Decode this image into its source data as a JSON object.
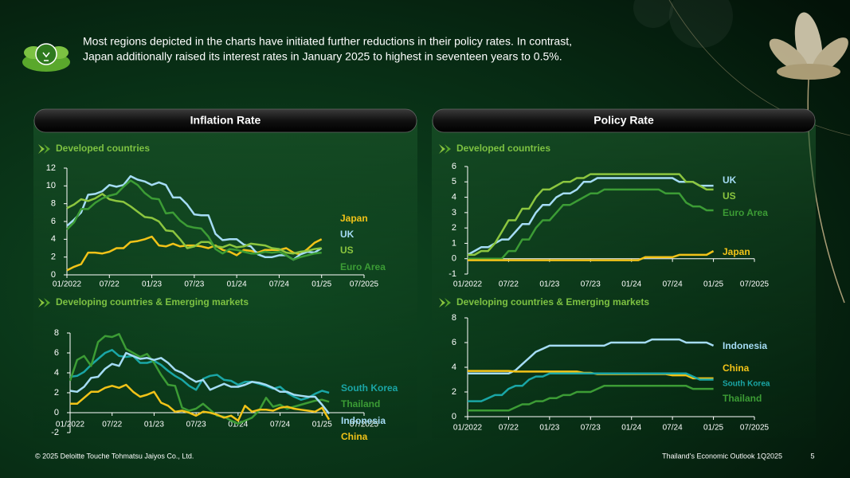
{
  "header": {
    "lines": [
      "Most regions depicted in the charts have initiated further reductions in their policy rates. In contrast,",
      "Japan additionally raised its interest rates in January 2025 to highest in seventeen years to 0.5%."
    ]
  },
  "panels": [
    {
      "title": "Inflation Rate"
    },
    {
      "title": "Policy Rate"
    }
  ],
  "footer": {
    "copyright": "© 2025 Deloitte Touche Tohmatsu Jaiyos Co., Ltd.",
    "report": "Thailand’s  Economic Outlook 1Q2025",
    "page": "5"
  },
  "chart_data": [
    {
      "type": "line",
      "title": "Developed countries",
      "categories": [
        "01/2022",
        null,
        null,
        null,
        null,
        null,
        "07/22",
        null,
        null,
        null,
        null,
        null,
        "01/23",
        null,
        null,
        null,
        null,
        null,
        "07/23",
        null,
        null,
        null,
        null,
        null,
        "01/24",
        null,
        null,
        null,
        null,
        null,
        "07/24",
        null,
        null,
        null,
        null,
        null,
        "01/25",
        null,
        null,
        null,
        null,
        null,
        "07/2025"
      ],
      "ylim": [
        0,
        12
      ],
      "yticks": [
        0,
        2,
        4,
        6,
        8,
        10,
        12
      ],
      "series": [
        {
          "name": "Japan",
          "color": "#f2c318",
          "values": [
            0.5,
            0.9,
            1.2,
            2.5,
            2.5,
            2.4,
            2.6,
            3.0,
            3.0,
            3.7,
            3.8,
            4.0,
            4.3,
            3.3,
            3.2,
            3.5,
            3.2,
            3.3,
            3.3,
            3.2,
            3.0,
            3.3,
            2.8,
            2.6,
            2.2,
            2.8,
            2.7,
            2.5,
            2.8,
            2.8,
            2.8,
            3.0,
            2.5,
            2.3,
            2.9,
            3.6,
            4.0,
            null,
            null,
            null,
            null,
            null,
            null
          ]
        },
        {
          "name": "UK",
          "color": "#a5dcf5",
          "values": [
            5.5,
            6.2,
            7.0,
            9.0,
            9.1,
            9.4,
            10.1,
            9.9,
            10.1,
            11.1,
            10.7,
            10.5,
            10.1,
            10.4,
            10.1,
            8.7,
            8.7,
            7.9,
            6.8,
            6.7,
            6.7,
            4.6,
            3.9,
            4.0,
            4.0,
            3.4,
            3.2,
            2.3,
            2.0,
            2.0,
            2.2,
            2.2,
            1.7,
            2.3,
            2.6,
            2.5,
            3.0,
            null,
            null,
            null,
            null,
            null,
            null
          ]
        },
        {
          "name": "US",
          "color": "#8cc63f",
          "values": [
            7.5,
            7.9,
            8.5,
            8.3,
            8.6,
            9.1,
            8.5,
            8.3,
            8.2,
            7.7,
            7.1,
            6.5,
            6.4,
            6.0,
            5.0,
            4.9,
            4.0,
            3.0,
            3.2,
            3.7,
            3.7,
            3.2,
            3.1,
            3.4,
            3.1,
            3.2,
            3.5,
            3.4,
            3.3,
            3.0,
            2.9,
            2.5,
            2.4,
            2.6,
            2.7,
            2.9,
            3.0,
            null,
            null,
            null,
            null,
            null,
            null
          ]
        },
        {
          "name": "Euro Area",
          "color": "#3c9c35",
          "values": [
            5.1,
            5.9,
            7.4,
            7.4,
            8.1,
            8.6,
            8.9,
            9.1,
            9.9,
            10.6,
            10.1,
            9.2,
            8.6,
            8.5,
            6.9,
            7.0,
            6.1,
            5.5,
            5.3,
            5.2,
            4.3,
            2.9,
            2.4,
            2.9,
            2.8,
            2.6,
            2.4,
            2.4,
            2.6,
            2.5,
            2.6,
            2.2,
            1.7,
            2.0,
            2.2,
            2.4,
            2.5,
            null,
            null,
            null,
            null,
            null,
            null
          ]
        }
      ]
    },
    {
      "type": "line",
      "title": "Developed countries",
      "categories": [
        "01/2022",
        null,
        null,
        null,
        null,
        null,
        "07/22",
        null,
        null,
        null,
        null,
        null,
        "01/23",
        null,
        null,
        null,
        null,
        null,
        "07/23",
        null,
        null,
        null,
        null,
        null,
        "01/24",
        null,
        null,
        null,
        null,
        null,
        "07/24",
        null,
        null,
        null,
        null,
        null,
        "01/25",
        null,
        null,
        null,
        null,
        null,
        "07/2025"
      ],
      "ylim": [
        -1,
        6
      ],
      "yticks": [
        -1,
        0,
        1,
        2,
        3,
        4,
        5,
        6
      ],
      "series": [
        {
          "name": "UK",
          "color": "#a5dcf5",
          "values": [
            0.25,
            0.5,
            0.75,
            0.75,
            1.0,
            1.25,
            1.25,
            1.75,
            2.25,
            2.25,
            3.0,
            3.5,
            3.5,
            4.0,
            4.25,
            4.25,
            4.5,
            5.0,
            5.0,
            5.25,
            5.25,
            5.25,
            5.25,
            5.25,
            5.25,
            5.25,
            5.25,
            5.25,
            5.25,
            5.25,
            5.25,
            5.0,
            5.0,
            5.0,
            4.75,
            4.75,
            4.75,
            null,
            null,
            null,
            null,
            null,
            null
          ]
        },
        {
          "name": "US",
          "color": "#8cc63f",
          "values": [
            0.25,
            0.25,
            0.5,
            0.5,
            1.0,
            1.75,
            2.5,
            2.5,
            3.25,
            3.25,
            4.0,
            4.5,
            4.5,
            4.75,
            5.0,
            5.0,
            5.25,
            5.25,
            5.5,
            5.5,
            5.5,
            5.5,
            5.5,
            5.5,
            5.5,
            5.5,
            5.5,
            5.5,
            5.5,
            5.5,
            5.5,
            5.5,
            5.0,
            5.0,
            4.75,
            4.5,
            4.5,
            null,
            null,
            null,
            null,
            null,
            null
          ]
        },
        {
          "name": "Euro Area",
          "color": "#3c9c35",
          "values": [
            0,
            0,
            0,
            0,
            0,
            0,
            0.5,
            0.5,
            1.25,
            1.25,
            2.0,
            2.5,
            2.5,
            3.0,
            3.5,
            3.5,
            3.75,
            4.0,
            4.25,
            4.25,
            4.5,
            4.5,
            4.5,
            4.5,
            4.5,
            4.5,
            4.5,
            4.5,
            4.5,
            4.25,
            4.25,
            4.25,
            3.65,
            3.4,
            3.4,
            3.15,
            3.15,
            null,
            null,
            null,
            null,
            null,
            null
          ]
        },
        {
          "name": "Japan",
          "color": "#f2c318",
          "values": [
            -0.1,
            -0.1,
            -0.1,
            -0.1,
            -0.1,
            -0.1,
            -0.1,
            -0.1,
            -0.1,
            -0.1,
            -0.1,
            -0.1,
            -0.1,
            -0.1,
            -0.1,
            -0.1,
            -0.1,
            -0.1,
            -0.1,
            -0.1,
            -0.1,
            -0.1,
            -0.1,
            -0.1,
            -0.1,
            -0.1,
            0.1,
            0.1,
            0.1,
            0.1,
            0.1,
            0.25,
            0.25,
            0.25,
            0.25,
            0.25,
            0.5,
            null,
            null,
            null,
            null,
            null,
            null
          ]
        }
      ]
    },
    {
      "type": "line",
      "title": "Developing countries & Emerging markets",
      "categories": [
        "01/2022",
        null,
        null,
        null,
        null,
        null,
        "07/22",
        null,
        null,
        null,
        null,
        null,
        "01/23",
        null,
        null,
        null,
        null,
        null,
        "07/23",
        null,
        null,
        null,
        null,
        null,
        "01/24",
        null,
        null,
        null,
        null,
        null,
        "07/24",
        null,
        null,
        null,
        null,
        null,
        "01/25",
        null,
        null,
        null,
        null,
        null,
        "07/2025"
      ],
      "ylim": [
        -2,
        8
      ],
      "yticks": [
        -2,
        0,
        2,
        4,
        6,
        8
      ],
      "series": [
        {
          "name": "South Korea",
          "color": "#1aa6a6",
          "values": [
            3.6,
            3.7,
            4.1,
            4.8,
            5.4,
            6.0,
            6.3,
            5.7,
            5.6,
            5.7,
            5.0,
            5.0,
            5.2,
            4.8,
            4.2,
            3.7,
            3.3,
            2.7,
            2.3,
            3.4,
            3.7,
            3.8,
            3.3,
            3.2,
            2.8,
            3.1,
            3.1,
            2.9,
            2.7,
            2.4,
            2.6,
            2.0,
            1.6,
            1.3,
            1.5,
            1.9,
            2.2,
            2.0,
            null,
            null,
            null,
            null,
            null
          ]
        },
        {
          "name": "Thailand",
          "color": "#3c9c35",
          "values": [
            3.2,
            5.3,
            5.7,
            4.7,
            7.1,
            7.7,
            7.6,
            7.9,
            6.4,
            6.0,
            5.6,
            5.9,
            5.0,
            3.8,
            2.8,
            2.7,
            0.5,
            0.2,
            0.4,
            0.9,
            0.3,
            -0.3,
            -0.4,
            -0.8,
            -1.1,
            -0.8,
            -0.5,
            0.2,
            1.5,
            0.6,
            0.8,
            0.4,
            0.6,
            0.8,
            1.0,
            1.2,
            1.3,
            1.1,
            null,
            null,
            null,
            null,
            null
          ]
        },
        {
          "name": "Indonesia",
          "color": "#a5dcf5",
          "values": [
            2.2,
            2.1,
            2.6,
            3.5,
            3.6,
            4.4,
            4.9,
            4.7,
            6.0,
            5.7,
            5.4,
            5.5,
            5.3,
            5.5,
            5.0,
            4.3,
            4.0,
            3.5,
            3.1,
            3.3,
            2.3,
            2.6,
            2.9,
            2.6,
            2.6,
            2.8,
            3.1,
            3.0,
            2.8,
            2.5,
            2.1,
            2.1,
            1.8,
            1.7,
            1.6,
            1.6,
            0.8,
            -0.1,
            null,
            null,
            null,
            null,
            null
          ]
        },
        {
          "name": "China",
          "color": "#f2c318",
          "values": [
            0.9,
            0.9,
            1.5,
            2.1,
            2.1,
            2.5,
            2.7,
            2.5,
            2.8,
            2.1,
            1.6,
            1.8,
            2.1,
            1.0,
            0.7,
            0.1,
            0.2,
            0.0,
            -0.3,
            0.1,
            0.0,
            -0.2,
            -0.5,
            -0.3,
            -0.8,
            0.7,
            0.1,
            0.3,
            0.3,
            0.2,
            0.5,
            0.6,
            0.4,
            0.3,
            0.2,
            0.1,
            0.5,
            -0.7,
            null,
            null,
            null,
            null,
            null
          ]
        }
      ]
    },
    {
      "type": "line",
      "title": "Developing countries & Emerging markets",
      "categories": [
        "01/2022",
        null,
        null,
        null,
        null,
        null,
        "07/22",
        null,
        null,
        null,
        null,
        null,
        "01/23",
        null,
        null,
        null,
        null,
        null,
        "07/23",
        null,
        null,
        null,
        null,
        null,
        "01/24",
        null,
        null,
        null,
        null,
        null,
        "07/24",
        null,
        null,
        null,
        null,
        null,
        "01/25",
        null,
        null,
        null,
        null,
        null,
        "07/2025"
      ],
      "ylim": [
        0,
        8
      ],
      "yticks": [
        0,
        2,
        4,
        6,
        8
      ],
      "series": [
        {
          "name": "Indonesia",
          "color": "#a5dcf5",
          "values": [
            3.5,
            3.5,
            3.5,
            3.5,
            3.5,
            3.5,
            3.5,
            3.75,
            4.25,
            4.75,
            5.25,
            5.5,
            5.75,
            5.75,
            5.75,
            5.75,
            5.75,
            5.75,
            5.75,
            5.75,
            5.75,
            6.0,
            6.0,
            6.0,
            6.0,
            6.0,
            6.0,
            6.25,
            6.25,
            6.25,
            6.25,
            6.25,
            6.0,
            6.0,
            6.0,
            6.0,
            5.75,
            null,
            null,
            null,
            null,
            null,
            null
          ]
        },
        {
          "name": "China",
          "color": "#f2c318",
          "values": [
            3.7,
            3.7,
            3.7,
            3.7,
            3.7,
            3.7,
            3.7,
            3.65,
            3.65,
            3.65,
            3.65,
            3.65,
            3.65,
            3.65,
            3.65,
            3.65,
            3.65,
            3.55,
            3.55,
            3.45,
            3.45,
            3.45,
            3.45,
            3.45,
            3.45,
            3.45,
            3.45,
            3.45,
            3.45,
            3.45,
            3.35,
            3.35,
            3.35,
            3.1,
            3.1,
            3.1,
            3.1,
            null,
            null,
            null,
            null,
            null,
            null
          ]
        },
        {
          "name": "South Korea",
          "color": "#1aa6a6",
          "values": [
            1.25,
            1.25,
            1.25,
            1.5,
            1.75,
            1.75,
            2.25,
            2.5,
            2.5,
            3.0,
            3.25,
            3.25,
            3.5,
            3.5,
            3.5,
            3.5,
            3.5,
            3.5,
            3.5,
            3.5,
            3.5,
            3.5,
            3.5,
            3.5,
            3.5,
            3.5,
            3.5,
            3.5,
            3.5,
            3.5,
            3.5,
            3.5,
            3.5,
            3.25,
            3.0,
            3.0,
            3.0,
            null,
            null,
            null,
            null,
            null,
            null
          ]
        },
        {
          "name": "Thailand",
          "color": "#3c9c35",
          "values": [
            0.5,
            0.5,
            0.5,
            0.5,
            0.5,
            0.5,
            0.5,
            0.75,
            1.0,
            1.0,
            1.25,
            1.25,
            1.5,
            1.5,
            1.75,
            1.75,
            2.0,
            2.0,
            2.0,
            2.25,
            2.5,
            2.5,
            2.5,
            2.5,
            2.5,
            2.5,
            2.5,
            2.5,
            2.5,
            2.5,
            2.5,
            2.5,
            2.5,
            2.25,
            2.25,
            2.25,
            2.25,
            null,
            null,
            null,
            null,
            null,
            null
          ]
        }
      ]
    }
  ]
}
